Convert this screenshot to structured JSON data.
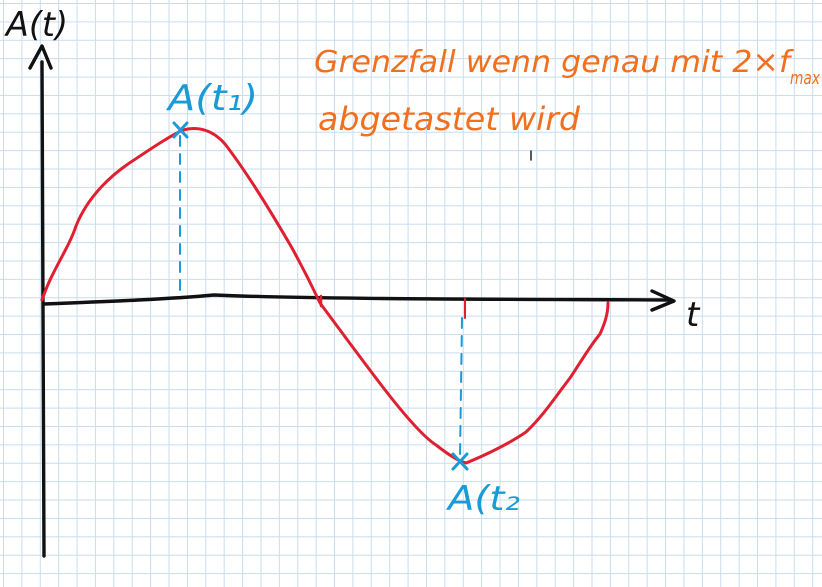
{
  "axes": {
    "y_label": "A(t)",
    "x_label": "t"
  },
  "annotations": {
    "peak_label": "A(t₁)",
    "trough_label": "A(t₂"
  },
  "note": {
    "line1": "Grenzfall wenn genau mit 2×f",
    "line1_subscript": "max",
    "line2": "abgetastet wird"
  },
  "colors": {
    "curve": "#e02030",
    "axis": "#111111",
    "sample": "#1a9ad6",
    "note": "#f07020",
    "grid": "#c9dcef"
  }
}
